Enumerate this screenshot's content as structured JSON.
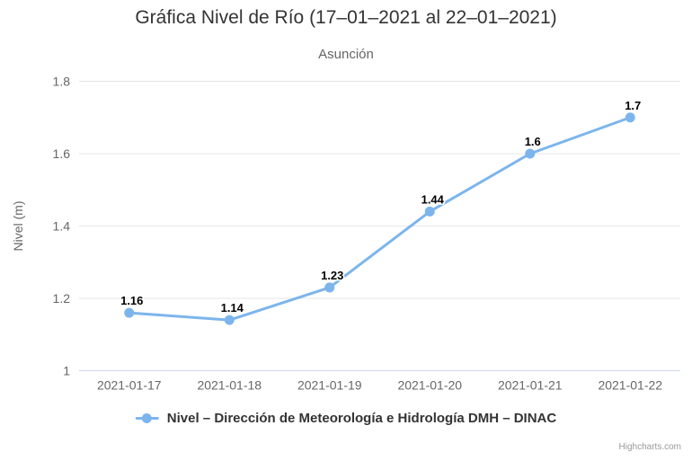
{
  "chart": {
    "credit": "Highcharts.com"
  },
  "chart_data": {
    "type": "line",
    "title": "Gráfica Nivel de Río (17–01–2021 al 22–01–2021)",
    "subtitle": "Asunción",
    "xlabel": "",
    "ylabel": "Nivel (m)",
    "categories": [
      "2021-01-17",
      "2021-01-18",
      "2021-01-19",
      "2021-01-20",
      "2021-01-21",
      "2021-01-22"
    ],
    "series": [
      {
        "name": "Nivel – Dirección de Meteorología e Hidrología DMH – DINAC",
        "values": [
          1.16,
          1.14,
          1.23,
          1.44,
          1.6,
          1.7
        ],
        "labels": [
          "1.16",
          "1.14",
          "1.23",
          "1.44",
          "1.6",
          "1.7"
        ],
        "color": "#7cb5ec"
      }
    ],
    "ylim": [
      1,
      1.8
    ],
    "yticks": [
      1,
      1.2,
      1.4,
      1.6,
      1.8
    ],
    "ytick_labels": [
      "1",
      "1.2",
      "1.4",
      "1.6",
      "1.8"
    ],
    "grid": true,
    "legend_position": "bottom",
    "colors": {
      "grid": "#e6e6e6",
      "axis_line": "#ccd6eb",
      "tick_label": "#666666",
      "data_label": "#000000",
      "legend_text": "#333333",
      "credit": "#999999"
    }
  }
}
